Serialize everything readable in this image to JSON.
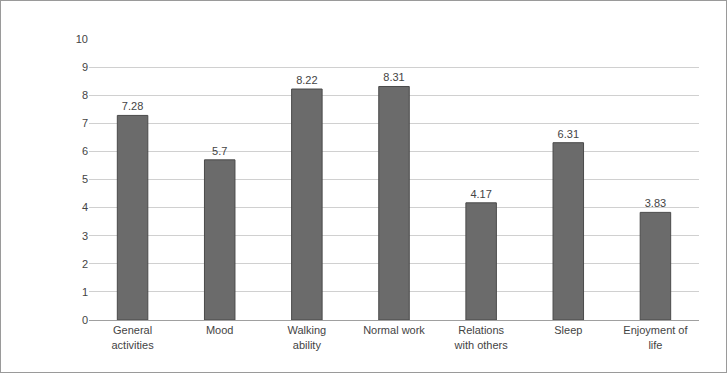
{
  "chart_data": {
    "type": "bar",
    "categories": [
      "General activities",
      "Mood",
      "Walking ability",
      "Normal work",
      "Relations with others",
      "Sleep",
      "Enjoyment of life"
    ],
    "values": [
      7.28,
      5.7,
      8.22,
      8.31,
      4.17,
      6.31,
      3.83
    ],
    "color": "#6b6b6b",
    "ylim": [
      0,
      10
    ],
    "yticks": [
      0,
      1,
      2,
      3,
      4,
      5,
      6,
      7,
      8,
      9,
      10
    ],
    "grid": true,
    "data_labels": true
  }
}
